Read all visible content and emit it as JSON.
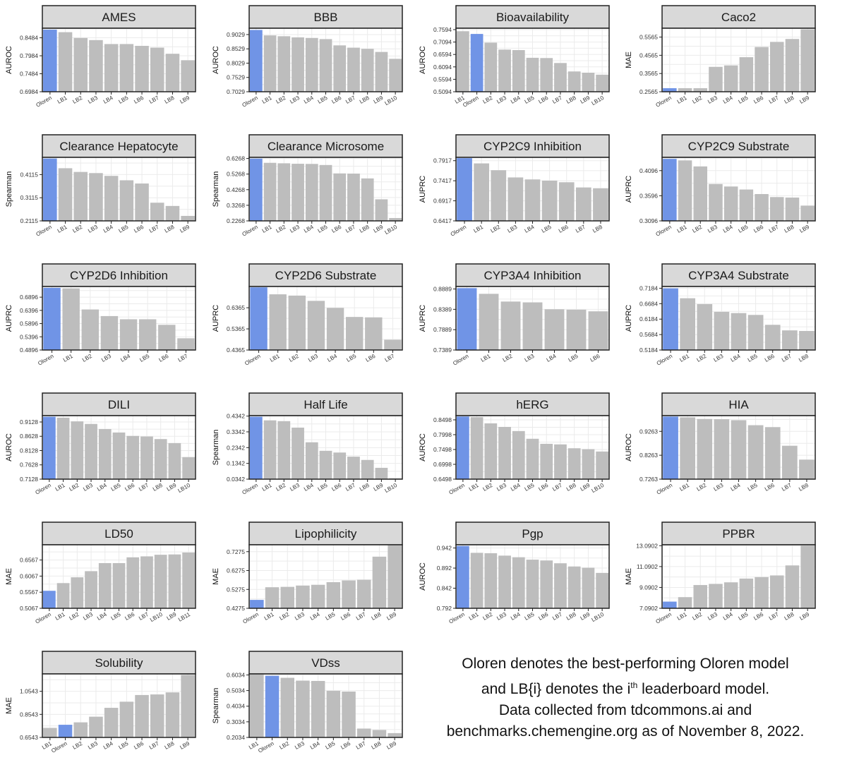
{
  "colors": {
    "highlight": "#7094e6",
    "bar": "#bdbdbd",
    "strip": "#d9d9d9",
    "grid": "#ebebeb",
    "frame": "#222222"
  },
  "caption": {
    "line1": "Oloren denotes the best-performing Oloren model",
    "line2_a": "and LB{i} denotes the i",
    "line2_sup": "th",
    "line2_b": " leaderboard model.",
    "line3": "Data collected from tdcommons.ai and",
    "line4": "benchmarks.chemengine.org as of November 8, 2022."
  },
  "chart_data": [
    {
      "type": "bar",
      "title": "AMES",
      "ylabel": "AUROC",
      "ylim": [
        0.6984,
        0.875
      ],
      "yticks": [
        "0.6984",
        "0.7484",
        "0.7984",
        "0.8484"
      ],
      "categories": [
        "Oloren",
        "LB1",
        "LB2",
        "LB3",
        "LB4",
        "LB5",
        "LB6",
        "LB7",
        "LB8",
        "LB9"
      ],
      "values": [
        0.871,
        0.864,
        0.848,
        0.842,
        0.831,
        0.831,
        0.826,
        0.821,
        0.804,
        0.786
      ],
      "highlight": "Oloren"
    },
    {
      "type": "bar",
      "title": "BBB",
      "ylabel": "AUROC",
      "ylim": [
        0.7029,
        0.925
      ],
      "yticks": [
        "0.7029",
        "0.7529",
        "0.8029",
        "0.8529",
        "0.9029"
      ],
      "categories": [
        "Oloren",
        "LB1",
        "LB2",
        "LB3",
        "LB4",
        "LB5",
        "LB6",
        "LB7",
        "LB8",
        "LB9",
        "LB10"
      ],
      "values": [
        0.919,
        0.9,
        0.897,
        0.893,
        0.891,
        0.887,
        0.865,
        0.857,
        0.853,
        0.842,
        0.818
      ],
      "highlight": "Oloren"
    },
    {
      "type": "bar",
      "title": "Bioavailability",
      "ylabel": "AUROC",
      "ylim": [
        0.5094,
        0.765
      ],
      "yticks": [
        "0.5094",
        "0.5594",
        "0.6094",
        "0.6594",
        "0.7094",
        "0.7594"
      ],
      "categories": [
        "LB1",
        "Oloren",
        "LB2",
        "LB3",
        "LB4",
        "LB5",
        "LB6",
        "LB7",
        "LB8",
        "LB9",
        "LB10"
      ],
      "values": [
        0.753,
        0.742,
        0.707,
        0.679,
        0.677,
        0.646,
        0.645,
        0.625,
        0.591,
        0.586,
        0.578
      ],
      "highlight": "Oloren"
    },
    {
      "type": "bar",
      "title": "Caco2",
      "ylabel": "MAE",
      "ylim": [
        0.2565,
        0.605
      ],
      "yticks": [
        "0.2565",
        "0.3565",
        "0.4565",
        "0.5565"
      ],
      "categories": [
        "Oloren",
        "LB1",
        "LB2",
        "LB3",
        "LB4",
        "LB5",
        "LB6",
        "LB7",
        "LB8",
        "LB9"
      ],
      "values": [
        0.276,
        0.276,
        0.276,
        0.393,
        0.401,
        0.446,
        0.502,
        0.53,
        0.546,
        0.599
      ],
      "highlight": "Oloren"
    },
    {
      "type": "bar",
      "title": "Clearance Hepatocyte",
      "ylabel": "Spearman",
      "ylim": [
        0.2115,
        0.486
      ],
      "yticks": [
        "0.2115",
        "0.3115",
        "0.4115"
      ],
      "categories": [
        "Oloren",
        "LB1",
        "LB2",
        "LB3",
        "LB4",
        "LB5",
        "LB6",
        "LB7",
        "LB8",
        "LB9"
      ],
      "values": [
        0.481,
        0.439,
        0.423,
        0.418,
        0.406,
        0.387,
        0.373,
        0.29,
        0.276,
        0.233
      ],
      "highlight": "Oloren"
    },
    {
      "type": "bar",
      "title": "Clearance Microsome",
      "ylabel": "Spearman",
      "ylim": [
        0.2268,
        0.634
      ],
      "yticks": [
        "0.2268",
        "0.3268",
        "0.4268",
        "0.5268",
        "0.6268"
      ],
      "categories": [
        "Oloren",
        "LB1",
        "LB2",
        "LB3",
        "LB4",
        "LB5",
        "LB6",
        "LB7",
        "LB8",
        "LB9",
        "LB10"
      ],
      "values": [
        0.626,
        0.599,
        0.596,
        0.593,
        0.592,
        0.585,
        0.531,
        0.53,
        0.499,
        0.365,
        0.245
      ],
      "highlight": "Oloren"
    },
    {
      "type": "bar",
      "title": "CYP2C9 Inhibition",
      "ylabel": "AUPRC",
      "ylim": [
        0.6417,
        0.8
      ],
      "yticks": [
        "0.6417",
        "0.6917",
        "0.7417",
        "0.7917"
      ],
      "categories": [
        "Oloren",
        "LB1",
        "LB2",
        "LB3",
        "LB4",
        "LB5",
        "LB6",
        "LB7",
        "LB8"
      ],
      "values": [
        0.798,
        0.785,
        0.768,
        0.75,
        0.745,
        0.742,
        0.738,
        0.725,
        0.723
      ],
      "highlight": "Oloren"
    },
    {
      "type": "bar",
      "title": "CYP2C9 Substrate",
      "ylabel": "AUPRC",
      "ylim": [
        0.3096,
        0.436
      ],
      "yticks": [
        "0.3096",
        "0.3596",
        "0.4096"
      ],
      "categories": [
        "Oloren",
        "LB1",
        "LB2",
        "LB3",
        "LB4",
        "LB5",
        "LB6",
        "LB7",
        "LB8",
        "LB9"
      ],
      "values": [
        0.433,
        0.43,
        0.418,
        0.383,
        0.378,
        0.372,
        0.363,
        0.357,
        0.356,
        0.34
      ],
      "highlight": "Oloren"
    },
    {
      "type": "bar",
      "title": "CYP2D6 Inhibition",
      "ylabel": "AUPRC",
      "ylim": [
        0.4896,
        0.73
      ],
      "yticks": [
        "0.4896",
        "0.5396",
        "0.5896",
        "0.6396",
        "0.6896"
      ],
      "categories": [
        "Oloren",
        "LB1",
        "LB2",
        "LB3",
        "LB4",
        "LB5",
        "LB6",
        "LB7"
      ],
      "values": [
        0.725,
        0.723,
        0.643,
        0.618,
        0.606,
        0.606,
        0.585,
        0.534
      ],
      "highlight": "Oloren"
    },
    {
      "type": "bar",
      "title": "CYP2D6 Substrate",
      "ylabel": "AUPRC",
      "ylim": [
        0.4365,
        0.737
      ],
      "yticks": [
        "0.4365",
        "0.5365",
        "0.6365"
      ],
      "categories": [
        "Oloren",
        "LB1",
        "LB2",
        "LB3",
        "LB4",
        "LB5",
        "LB6",
        "LB7"
      ],
      "values": [
        0.733,
        0.7,
        0.694,
        0.669,
        0.636,
        0.593,
        0.591,
        0.485
      ],
      "highlight": "Oloren"
    },
    {
      "type": "bar",
      "title": "CYP3A4 Inhibition",
      "ylabel": "AUPRC",
      "ylim": [
        0.7389,
        0.895
      ],
      "yticks": [
        "0.7389",
        "0.7889",
        "0.8389",
        "0.8889"
      ],
      "categories": [
        "Oloren",
        "LB1",
        "LB2",
        "LB3",
        "LB4",
        "LB5",
        "LB6"
      ],
      "values": [
        0.891,
        0.877,
        0.858,
        0.856,
        0.839,
        0.838,
        0.834
      ],
      "highlight": "Oloren"
    },
    {
      "type": "bar",
      "title": "CYP3A4 Substrate",
      "ylabel": "AUPRC",
      "ylim": [
        0.5184,
        0.724
      ],
      "yticks": [
        "0.5184",
        "0.5684",
        "0.6184",
        "0.6684",
        "0.7184"
      ],
      "categories": [
        "Oloren",
        "LB1",
        "LB2",
        "LB3",
        "LB4",
        "LB5",
        "LB6",
        "LB7",
        "LB8"
      ],
      "values": [
        0.718,
        0.686,
        0.667,
        0.642,
        0.638,
        0.632,
        0.6,
        0.582,
        0.58
      ],
      "highlight": "Oloren"
    },
    {
      "type": "bar",
      "title": "DILI",
      "ylabel": "AUROC",
      "ylim": [
        0.7128,
        0.935
      ],
      "yticks": [
        "0.7128",
        "0.7628",
        "0.8128",
        "0.8628",
        "0.9128"
      ],
      "categories": [
        "Oloren",
        "LB1",
        "LB2",
        "LB3",
        "LB4",
        "LB5",
        "LB6",
        "LB7",
        "LB8",
        "LB9",
        "LB10"
      ],
      "values": [
        0.931,
        0.928,
        0.915,
        0.906,
        0.888,
        0.876,
        0.864,
        0.862,
        0.853,
        0.839,
        0.79
      ],
      "highlight": "Oloren"
    },
    {
      "type": "bar",
      "title": "Half Life",
      "ylabel": "Spearman",
      "ylim": [
        0.0342,
        0.437
      ],
      "yticks": [
        "0.0342",
        "0.1342",
        "0.2342",
        "0.3342",
        "0.4342"
      ],
      "categories": [
        "Oloren",
        "LB1",
        "LB2",
        "LB3",
        "LB4",
        "LB5",
        "LB6",
        "LB7",
        "LB8",
        "LB9",
        "LB10"
      ],
      "values": [
        0.43,
        0.407,
        0.402,
        0.361,
        0.268,
        0.214,
        0.203,
        0.177,
        0.156,
        0.106,
        0.04
      ],
      "highlight": "Oloren"
    },
    {
      "type": "bar",
      "title": "hERG",
      "ylabel": "AUROC",
      "ylim": [
        0.6498,
        0.864
      ],
      "yticks": [
        "0.6498",
        "0.6998",
        "0.7498",
        "0.7998",
        "0.8498"
      ],
      "categories": [
        "Oloren",
        "LB1",
        "LB2",
        "LB3",
        "LB4",
        "LB5",
        "LB6",
        "LB7",
        "LB8",
        "LB9",
        "LB10"
      ],
      "values": [
        0.861,
        0.859,
        0.838,
        0.826,
        0.812,
        0.786,
        0.769,
        0.767,
        0.754,
        0.751,
        0.743
      ],
      "highlight": "Oloren"
    },
    {
      "type": "bar",
      "title": "HIA",
      "ylabel": "AUROC",
      "ylim": [
        0.7263,
        0.992
      ],
      "yticks": [
        "0.7263",
        "0.8263",
        "0.9263"
      ],
      "categories": [
        "Oloren",
        "LB1",
        "LB2",
        "LB3",
        "LB4",
        "LB5",
        "LB6",
        "LB7",
        "LB8"
      ],
      "values": [
        0.988,
        0.985,
        0.978,
        0.977,
        0.973,
        0.952,
        0.944,
        0.866,
        0.808
      ],
      "highlight": "Oloren"
    },
    {
      "type": "bar",
      "title": "LD50",
      "ylabel": "MAE",
      "ylim": [
        0.5067,
        0.704
      ],
      "yticks": [
        "0.5067",
        "0.5567",
        "0.6067",
        "0.6567"
      ],
      "categories": [
        "Oloren",
        "LB1",
        "LB2",
        "LB3",
        "LB4",
        "LB5",
        "LB6",
        "LB7",
        "LB10",
        "LB9",
        "LB11"
      ],
      "values": [
        0.561,
        0.585,
        0.603,
        0.622,
        0.647,
        0.647,
        0.665,
        0.668,
        0.673,
        0.674,
        0.68
      ],
      "highlight": "Oloren"
    },
    {
      "type": "bar",
      "title": "Lipophilicity",
      "ylabel": "MAE",
      "ylim": [
        0.4275,
        0.764
      ],
      "yticks": [
        "0.4275",
        "0.5275",
        "0.6275",
        "0.7275"
      ],
      "categories": [
        "Oloren",
        "LB1",
        "LB2",
        "LB3",
        "LB4",
        "LB5",
        "LB6",
        "LB7",
        "LB8",
        "LB9"
      ],
      "values": [
        0.472,
        0.539,
        0.541,
        0.548,
        0.552,
        0.566,
        0.575,
        0.579,
        0.701,
        0.761
      ],
      "highlight": "Oloren"
    },
    {
      "type": "bar",
      "title": "Pgp",
      "ylabel": "AUROC",
      "ylim": [
        0.792,
        0.95
      ],
      "yticks": [
        "0.792",
        "0.842",
        "0.892",
        "0.942"
      ],
      "categories": [
        "Oloren",
        "LB1",
        "LB2",
        "LB3",
        "LB4",
        "LB5",
        "LB6",
        "LB7",
        "LB8",
        "LB9",
        "LB10"
      ],
      "values": [
        0.947,
        0.93,
        0.929,
        0.923,
        0.919,
        0.913,
        0.911,
        0.904,
        0.896,
        0.893,
        0.88
      ],
      "highlight": "Oloren"
    },
    {
      "type": "bar",
      "title": "PPBR",
      "ylabel": "MAE",
      "ylim": [
        7.0902,
        13.18
      ],
      "yticks": [
        "7.0902",
        "9.0902",
        "11.0902",
        "13.0902"
      ],
      "categories": [
        "Oloren",
        "LB1",
        "LB2",
        "LB3",
        "LB4",
        "LB5",
        "LB6",
        "LB7",
        "LB8",
        "LB9"
      ],
      "values": [
        7.73,
        8.16,
        9.32,
        9.43,
        9.58,
        9.94,
        10.08,
        10.24,
        11.2,
        13.1
      ],
      "highlight": "Oloren"
    },
    {
      "type": "bar",
      "title": "Solubility",
      "ylabel": "MAE",
      "ylim": [
        0.6543,
        1.205
      ],
      "yticks": [
        "0.6543",
        "0.8543",
        "1.0543"
      ],
      "categories": [
        "LB1",
        "Oloren",
        "LB2",
        "LB3",
        "LB4",
        "LB5",
        "LB6",
        "LB7",
        "LB8",
        "LB9"
      ],
      "values": [
        0.737,
        0.764,
        0.785,
        0.834,
        0.911,
        0.964,
        1.022,
        1.027,
        1.045,
        1.196
      ],
      "highlight": "Oloren"
    },
    {
      "type": "bar",
      "title": "VDss",
      "ylabel": "Spearman",
      "ylim": [
        0.2034,
        0.61
      ],
      "yticks": [
        "0.2034",
        "0.3034",
        "0.4034",
        "0.5034",
        "0.6034"
      ],
      "categories": [
        "LB1",
        "Oloren",
        "LB2",
        "LB3",
        "LB4",
        "LB5",
        "LB6",
        "LB7",
        "LB8",
        "LB9"
      ],
      "values": [
        0.607,
        0.598,
        0.585,
        0.567,
        0.565,
        0.502,
        0.497,
        0.26,
        0.251,
        0.231
      ],
      "highlight": "Oloren"
    }
  ]
}
